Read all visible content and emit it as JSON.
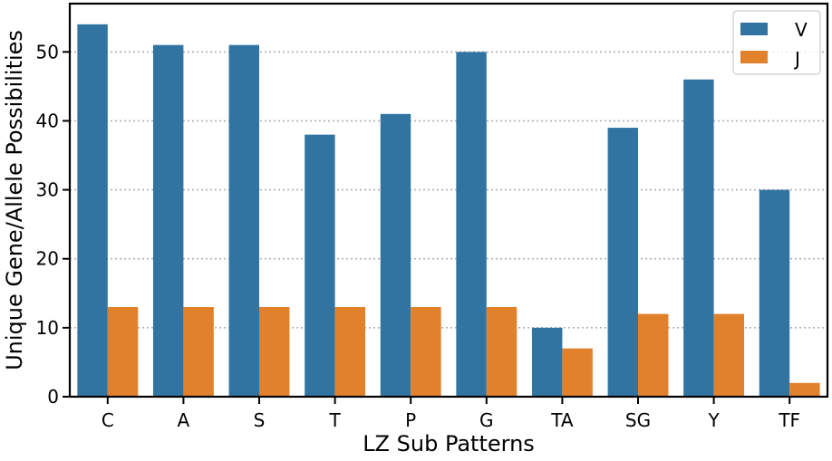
{
  "chart_data": {
    "type": "bar",
    "title": "",
    "xlabel": "LZ Sub Patterns",
    "ylabel": "Unique Gene/Allele Possibilities",
    "categories": [
      "C",
      "A",
      "S",
      "T",
      "P",
      "G",
      "TA",
      "SG",
      "Y",
      "TF"
    ],
    "series": [
      {
        "name": "V",
        "color": "#3274a1",
        "values": [
          54,
          51,
          51,
          38,
          41,
          50,
          10,
          39,
          46,
          30
        ]
      },
      {
        "name": "J",
        "color": "#e1812c",
        "values": [
          13,
          13,
          13,
          13,
          13,
          13,
          7,
          12,
          12,
          2
        ]
      }
    ],
    "ylim": [
      0,
      57
    ],
    "yticks": [
      "0",
      "10",
      "20",
      "30",
      "40",
      "50"
    ],
    "grid": "y-dotted",
    "legend_position": "top-right"
  }
}
